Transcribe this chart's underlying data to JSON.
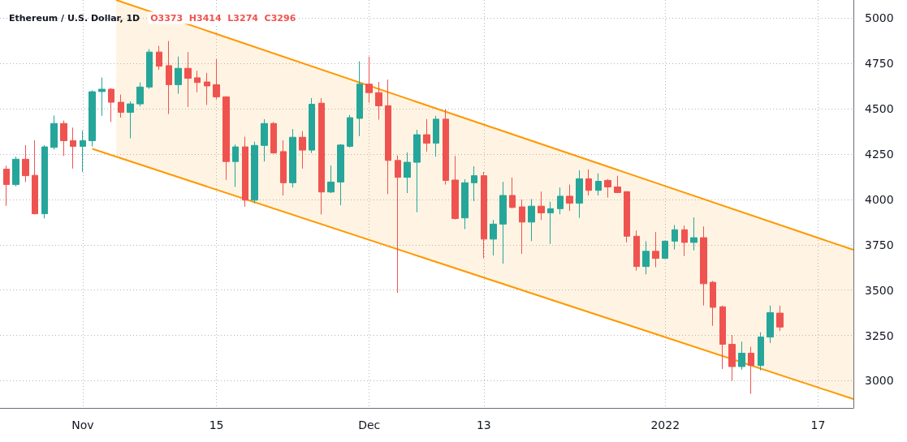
{
  "chart_data": {
    "type": "candlestick",
    "title": "Ethereum / U.S. Dollar, 1D",
    "annotations": [
      "O3373  H3414  L3274  C3296"
    ],
    "x": [
      "2021-10-24",
      "2021-10-25",
      "2021-10-26",
      "2021-10-27",
      "2021-10-28",
      "2021-10-29",
      "2021-10-30",
      "2021-10-31",
      "2021-11-01",
      "2021-11-02",
      "2021-11-03",
      "2021-11-04",
      "2021-11-05",
      "2021-11-06",
      "2021-11-07",
      "2021-11-08",
      "2021-11-09",
      "2021-11-10",
      "2021-11-11",
      "2021-11-12",
      "2021-11-13",
      "2021-11-14",
      "2021-11-15",
      "2021-11-16",
      "2021-11-17",
      "2021-11-18",
      "2021-11-19",
      "2021-11-20",
      "2021-11-21",
      "2021-11-22",
      "2021-11-23",
      "2021-11-24",
      "2021-11-25",
      "2021-11-26",
      "2021-11-27",
      "2021-11-28",
      "2021-11-29",
      "2021-11-30",
      "2021-12-01",
      "2021-12-02",
      "2021-12-03",
      "2021-12-04",
      "2021-12-05",
      "2021-12-06",
      "2021-12-07",
      "2021-12-08",
      "2021-12-09",
      "2021-12-10",
      "2021-12-11",
      "2021-12-12",
      "2021-12-13",
      "2021-12-14",
      "2021-12-15",
      "2021-12-16",
      "2021-12-17",
      "2021-12-18",
      "2021-12-19",
      "2021-12-20",
      "2021-12-21",
      "2021-12-22",
      "2021-12-23",
      "2021-12-24",
      "2021-12-25",
      "2021-12-26",
      "2021-12-27",
      "2021-12-28",
      "2021-12-29",
      "2021-12-30",
      "2021-12-31",
      "2022-01-01",
      "2022-01-02",
      "2022-01-03",
      "2022-01-04",
      "2022-01-05",
      "2022-01-06",
      "2022-01-07",
      "2022-01-08",
      "2022-01-09",
      "2022-01-10",
      "2022-01-11",
      "2022-01-12",
      "2022-01-13"
    ],
    "ohlc": [
      [
        4167,
        4186,
        3965,
        4082
      ],
      [
        4082,
        4236,
        4072,
        4222
      ],
      [
        4222,
        4300,
        4096,
        4131
      ],
      [
        4133,
        4326,
        3917,
        3921
      ],
      [
        3921,
        4300,
        3895,
        4290
      ],
      [
        4287,
        4463,
        4275,
        4419
      ],
      [
        4419,
        4435,
        4240,
        4324
      ],
      [
        4324,
        4396,
        4170,
        4293
      ],
      [
        4293,
        4380,
        4152,
        4324
      ],
      [
        4324,
        4602,
        4292,
        4594
      ],
      [
        4595,
        4672,
        4461,
        4608
      ],
      [
        4608,
        4614,
        4427,
        4536
      ],
      [
        4536,
        4578,
        4451,
        4480
      ],
      [
        4480,
        4541,
        4337,
        4527
      ],
      [
        4527,
        4645,
        4513,
        4620
      ],
      [
        4620,
        4829,
        4610,
        4813
      ],
      [
        4813,
        4847,
        4715,
        4735
      ],
      [
        4738,
        4874,
        4471,
        4633
      ],
      [
        4633,
        4788,
        4583,
        4723
      ],
      [
        4723,
        4813,
        4510,
        4668
      ],
      [
        4671,
        4710,
        4591,
        4645
      ],
      [
        4648,
        4698,
        4521,
        4626
      ],
      [
        4633,
        4774,
        4552,
        4566
      ],
      [
        4566,
        4570,
        4108,
        4209
      ],
      [
        4209,
        4303,
        4069,
        4290
      ],
      [
        4290,
        4346,
        3960,
        3996
      ],
      [
        3996,
        4318,
        3979,
        4298
      ],
      [
        4298,
        4443,
        4209,
        4419
      ],
      [
        4419,
        4427,
        4253,
        4256
      ],
      [
        4264,
        4326,
        4022,
        4092
      ],
      [
        4092,
        4388,
        4066,
        4343
      ],
      [
        4343,
        4377,
        4170,
        4272
      ],
      [
        4272,
        4559,
        4256,
        4525
      ],
      [
        4531,
        4559,
        3917,
        4041
      ],
      [
        4041,
        4187,
        4035,
        4096
      ],
      [
        4096,
        4305,
        3968,
        4300
      ],
      [
        4293,
        4466,
        4287,
        4451
      ],
      [
        4447,
        4762,
        4349,
        4636
      ],
      [
        4636,
        4788,
        4533,
        4589
      ],
      [
        4589,
        4648,
        4440,
        4516
      ],
      [
        4517,
        4661,
        4030,
        4215
      ],
      [
        4215,
        4243,
        3485,
        4122
      ],
      [
        4122,
        4259,
        4035,
        4205
      ],
      [
        4205,
        4384,
        3929,
        4357
      ],
      [
        4357,
        4443,
        4264,
        4310
      ],
      [
        4310,
        4461,
        4236,
        4443
      ],
      [
        4443,
        4497,
        4082,
        4105
      ],
      [
        4107,
        4240,
        3889,
        3895
      ],
      [
        3898,
        4111,
        3836,
        4092
      ],
      [
        4092,
        4183,
        3991,
        4131
      ],
      [
        4131,
        4152,
        3675,
        3781
      ],
      [
        3781,
        3887,
        3691,
        3864
      ],
      [
        3864,
        4097,
        3646,
        4022
      ],
      [
        4022,
        4121,
        3950,
        3956
      ],
      [
        3959,
        3999,
        3700,
        3875
      ],
      [
        3875,
        4002,
        3770,
        3963
      ],
      [
        3963,
        4044,
        3887,
        3926
      ],
      [
        3926,
        3987,
        3755,
        3949
      ],
      [
        3949,
        4066,
        3918,
        4018
      ],
      [
        4018,
        4082,
        3937,
        3979
      ],
      [
        3979,
        4161,
        3898,
        4114
      ],
      [
        4114,
        4166,
        4022,
        4050
      ],
      [
        4050,
        4144,
        4022,
        4100
      ],
      [
        4105,
        4113,
        4010,
        4069
      ],
      [
        4069,
        4131,
        4035,
        4038
      ],
      [
        4043,
        4045,
        3763,
        3797
      ],
      [
        3797,
        3828,
        3607,
        3630
      ],
      [
        3630,
        3770,
        3587,
        3714
      ],
      [
        3714,
        3820,
        3626,
        3675
      ],
      [
        3675,
        3772,
        3672,
        3770
      ],
      [
        3770,
        3859,
        3724,
        3833
      ],
      [
        3833,
        3856,
        3688,
        3763
      ],
      [
        3763,
        3901,
        3719,
        3789
      ],
      [
        3789,
        3851,
        3415,
        3535
      ],
      [
        3543,
        3551,
        3303,
        3405
      ],
      [
        3408,
        3415,
        3065,
        3201
      ],
      [
        3201,
        3252,
        3000,
        3078
      ],
      [
        3078,
        3216,
        3061,
        3152
      ],
      [
        3152,
        3187,
        2928,
        3084
      ],
      [
        3084,
        3267,
        3057,
        3241
      ],
      [
        3241,
        3415,
        3208,
        3376
      ],
      [
        3373,
        3414,
        3274,
        3296
      ]
    ],
    "colors": [
      "#ef5350",
      "#26a69a",
      "#ef5350",
      "#ef5350",
      "#26a69a",
      "#26a69a",
      "#ef5350",
      "#ef5350",
      "#26a69a",
      "#26a69a",
      "#26a69a",
      "#ef5350",
      "#ef5350",
      "#26a69a",
      "#26a69a",
      "#26a69a",
      "#ef5350",
      "#ef5350",
      "#26a69a",
      "#ef5350",
      "#ef5350",
      "#ef5350",
      "#ef5350",
      "#ef5350",
      "#26a69a",
      "#ef5350",
      "#26a69a",
      "#26a69a",
      "#ef5350",
      "#ef5350",
      "#26a69a",
      "#ef5350",
      "#26a69a",
      "#ef5350",
      "#26a69a",
      "#26a69a",
      "#26a69a",
      "#26a69a",
      "#ef5350",
      "#ef5350",
      "#ef5350",
      "#ef5350",
      "#26a69a",
      "#26a69a",
      "#ef5350",
      "#26a69a",
      "#ef5350",
      "#ef5350",
      "#26a69a",
      "#26a69a",
      "#ef5350",
      "#26a69a",
      "#26a69a",
      "#ef5350",
      "#ef5350",
      "#26a69a",
      "#ef5350",
      "#26a69a",
      "#26a69a",
      "#ef5350",
      "#26a69a",
      "#ef5350",
      "#26a69a",
      "#ef5350",
      "#ef5350",
      "#ef5350",
      "#ef5350",
      "#26a69a",
      "#ef5350",
      "#26a69a",
      "#26a69a",
      "#ef5350",
      "#26a69a",
      "#ef5350",
      "#ef5350",
      "#ef5350",
      "#ef5350",
      "#26a69a",
      "#ef5350",
      "#26a69a",
      "#26a69a",
      "#ef5350"
    ],
    "series": [
      {
        "type": "line",
        "color": "#ff9800",
        "x": [
          "2021-11-04T12:00",
          "2022-01-20T17:00"
        ],
        "values": [
          5100,
          3722
        ],
        "lower": [
          4236,
          2899
        ],
        "upper": [
          5100,
          3722
        ]
      },
      {
        "type": "line",
        "color": "#ff9800",
        "x": [
          "2021-11-02",
          "2022-01-20T17:00"
        ],
        "values": [
          4279,
          2899
        ]
      }
    ],
    "xlim": [
      "2021-10-23T08:00",
      "2022-01-20T17:00"
    ],
    "xticks": [
      {
        "value": "2021-11-01",
        "label": "Nov"
      },
      {
        "value": "2021-11-15",
        "label": "15"
      },
      {
        "value": "2021-12-01",
        "label": "Dec"
      },
      {
        "value": "2021-12-13",
        "label": "13"
      },
      {
        "value": "2022-01-01",
        "label": "2022"
      },
      {
        "value": "2022-01-17",
        "label": "17"
      }
    ],
    "ylim": [
      2850,
      5100
    ],
    "yticks": [
      3000,
      3250,
      3500,
      3750,
      4000,
      4250,
      4500,
      4750,
      5000
    ],
    "grid": true
  }
}
